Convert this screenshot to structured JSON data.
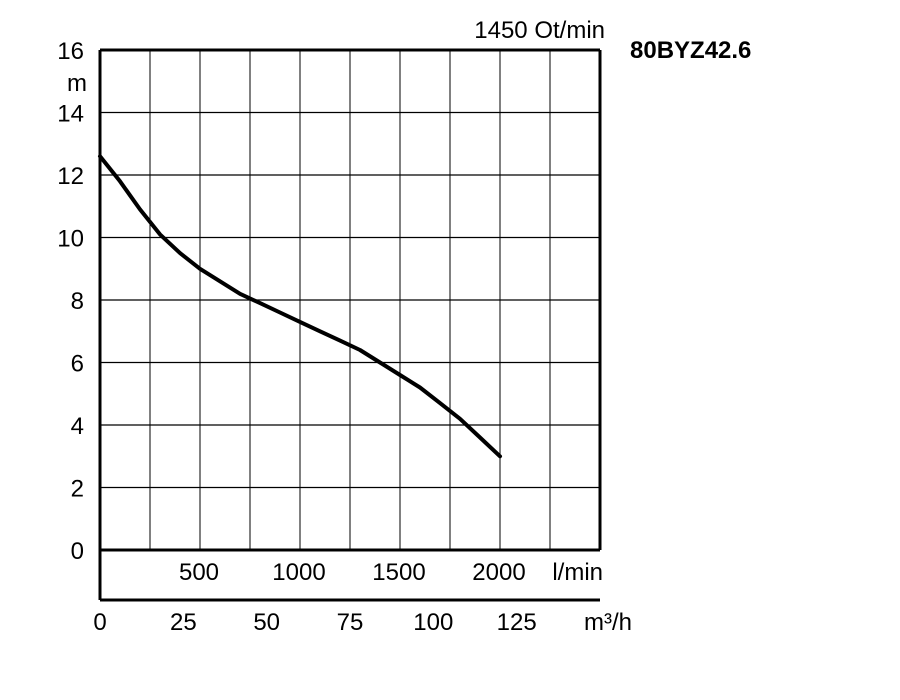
{
  "chart_data": {
    "type": "line",
    "speed_label": "1450 Ot/min",
    "model": "80BYZ42.6",
    "ylabel": "m",
    "ylim": [
      0,
      16
    ],
    "y_ticks": [
      "0",
      "2",
      "4",
      "6",
      "8",
      "10",
      "12",
      "14",
      "16"
    ],
    "xlabel_lmin": "l/min",
    "x_ticks_lmin": [
      "500",
      "1000",
      "1500",
      "2000"
    ],
    "xlabel_m3h": "m³/h",
    "x_ticks_m3h": [
      "0",
      "25",
      "50",
      "75",
      "100",
      "125"
    ],
    "xlim_lmin": [
      0,
      2500
    ],
    "grid": true,
    "series": [
      {
        "x": [
          0,
          100,
          200,
          300,
          400,
          500,
          600,
          700,
          800,
          900,
          1000,
          1100,
          1200,
          1300,
          1400,
          1500,
          1600,
          1700,
          1800,
          1900,
          2000
        ],
        "y": [
          12.6,
          11.8,
          10.9,
          10.1,
          9.5,
          9.0,
          8.6,
          8.2,
          7.9,
          7.6,
          7.3,
          7.0,
          6.7,
          6.4,
          6.0,
          5.6,
          5.2,
          4.7,
          4.2,
          3.6,
          3.0
        ]
      }
    ]
  }
}
